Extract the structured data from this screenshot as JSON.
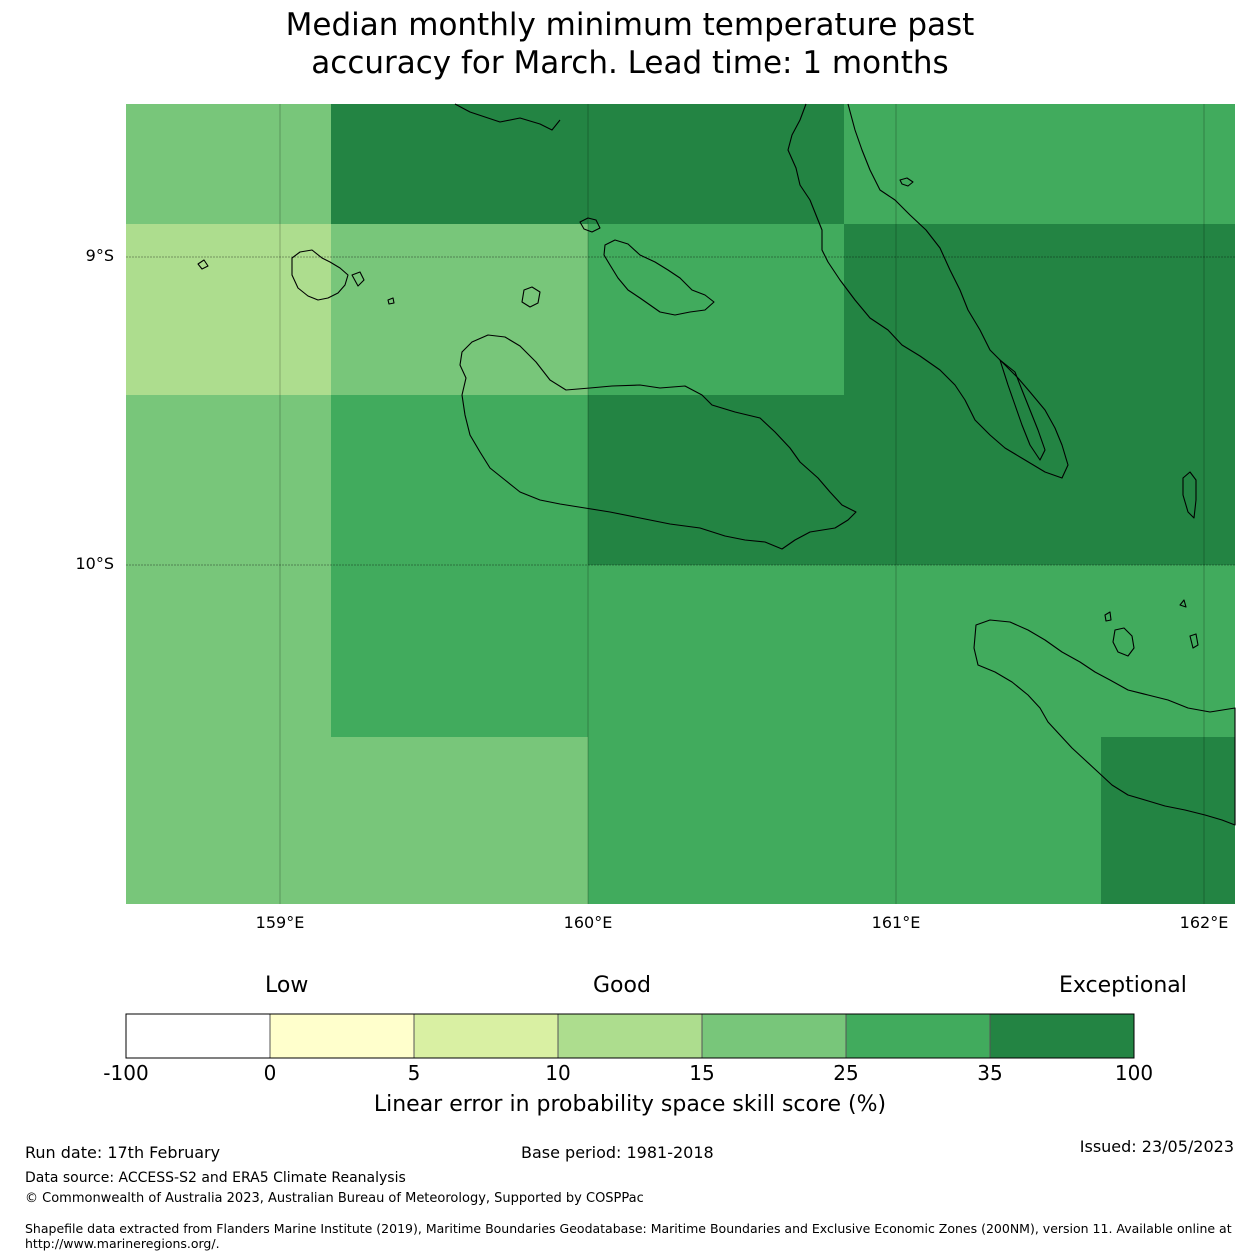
{
  "title": {
    "line1": "Median monthly minimum temperature past",
    "line2": "accuracy for March. Lead time: 1 months"
  },
  "map": {
    "lat_labels": [
      "9°S",
      "10°S"
    ],
    "lon_labels": [
      "159°E",
      "160°E",
      "161°E",
      "162°E"
    ],
    "cells": [
      {
        "category": "15-25",
        "color": "#78c67a"
      },
      {
        "category": "35-100",
        "color": "#238443"
      },
      {
        "category": "25-35",
        "color": "#41ab5d"
      },
      {
        "category": "10-15",
        "color": "#addd8e"
      },
      {
        "category": "15-25",
        "color": "#78c67a"
      },
      {
        "category": "25-35",
        "color": "#41ab5d"
      },
      {
        "category": "35-100",
        "color": "#238443"
      },
      {
        "category": "15-25",
        "color": "#78c67a"
      },
      {
        "category": "25-35",
        "color": "#41ab5d"
      },
      {
        "category": "35-100",
        "color": "#238443"
      },
      {
        "category": "15-25",
        "color": "#78c67a"
      },
      {
        "category": "25-35",
        "color": "#41ab5d"
      },
      {
        "category": "35-100",
        "color": "#238443"
      }
    ]
  },
  "colorbar": {
    "head_low": "Low",
    "head_good": "Good",
    "head_exceptional": "Exceptional",
    "ticks": [
      "-100",
      "0",
      "5",
      "10",
      "15",
      "25",
      "35",
      "100"
    ],
    "colors": [
      "#ffffff",
      "#ffffcc",
      "#d9f0a3",
      "#addd8e",
      "#78c67a",
      "#41ab5d",
      "#238443"
    ],
    "label": "Linear error in probability space skill score (%)"
  },
  "footer": {
    "run_date": "Run date: 17th February",
    "base_period": "Base period: 1981-2018",
    "issued": "Issued: 23/05/2023",
    "data_source": "Data source: ACCESS-S2 and ERA5 Climate Reanalysis",
    "copyright": "© Commonwealth of Australia 2023, Australian Bureau of Meteorology, Supported by COSPPac",
    "shapefile": "Shapefile data extracted from Flanders Marine Institute (2019), Maritime Boundaries Geodatabase: Maritime Boundaries and Exclusive Economic Zones (200NM), version 11. Available online at",
    "url": "http://www.marineregions.org/."
  }
}
